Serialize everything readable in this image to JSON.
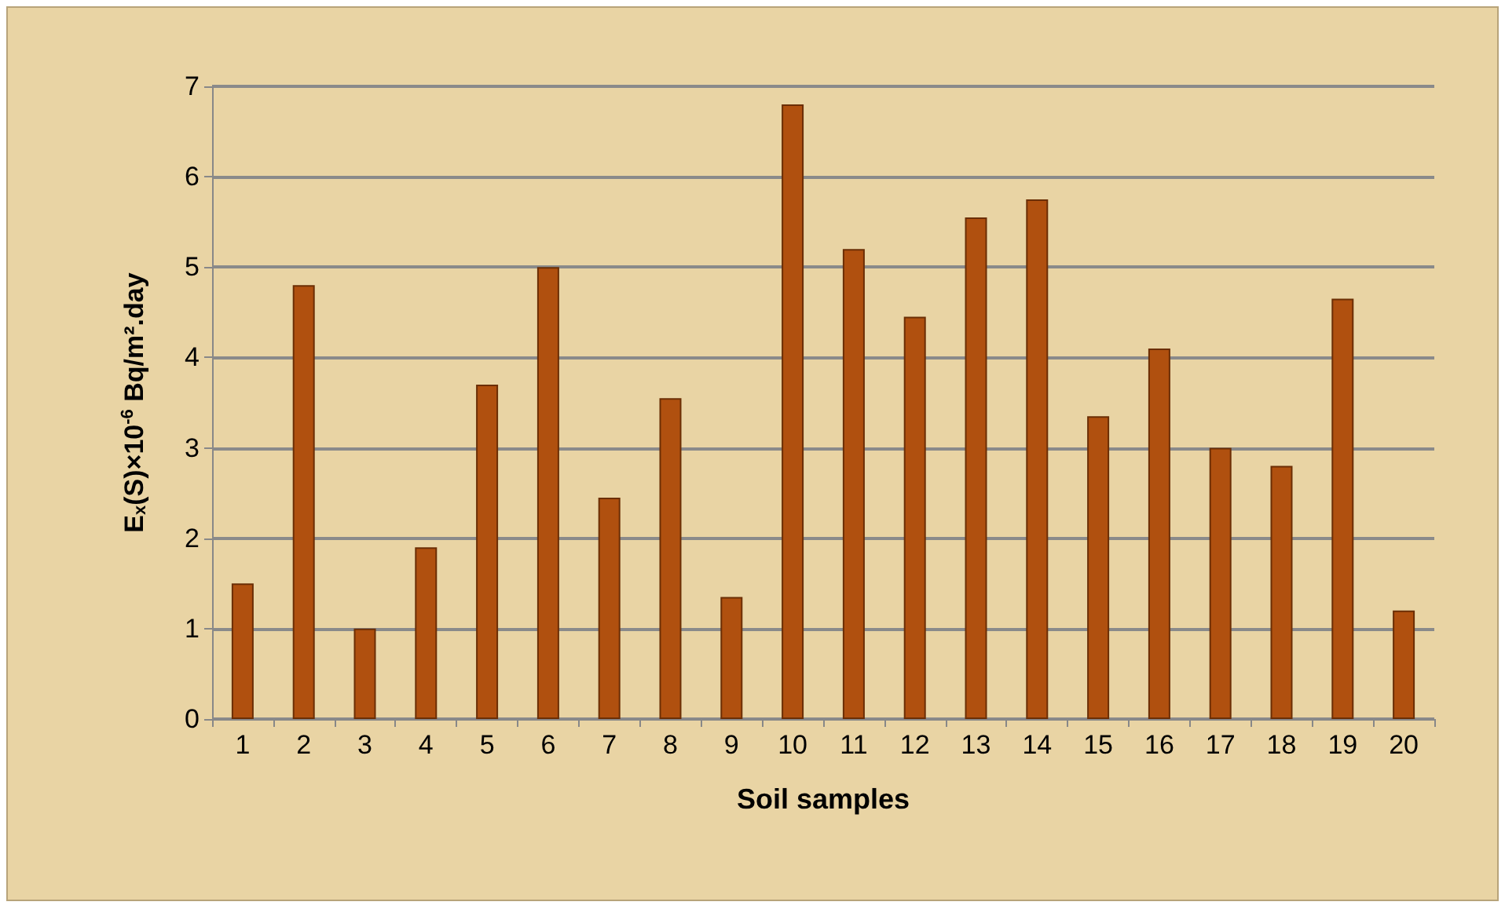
{
  "chart_data": {
    "type": "bar",
    "xlabel": "Soil samples",
    "ylabel": "E$_{x}$(S)×10$^{-6}$ Bq/m².day",
    "categories": [
      "1",
      "2",
      "3",
      "4",
      "5",
      "6",
      "7",
      "8",
      "9",
      "10",
      "11",
      "12",
      "13",
      "14",
      "15",
      "16",
      "17",
      "18",
      "19",
      "20"
    ],
    "values": [
      1.5,
      4.8,
      1.0,
      1.9,
      3.7,
      5.0,
      2.45,
      3.55,
      1.35,
      6.8,
      5.2,
      4.45,
      5.55,
      5.75,
      3.35,
      4.1,
      3.0,
      2.8,
      4.65,
      1.2
    ],
    "color": "#b0500f",
    "ylim": [
      0,
      7
    ],
    "yticks": [
      0,
      1,
      2,
      3,
      4,
      5,
      6,
      7
    ],
    "grid": "y"
  }
}
